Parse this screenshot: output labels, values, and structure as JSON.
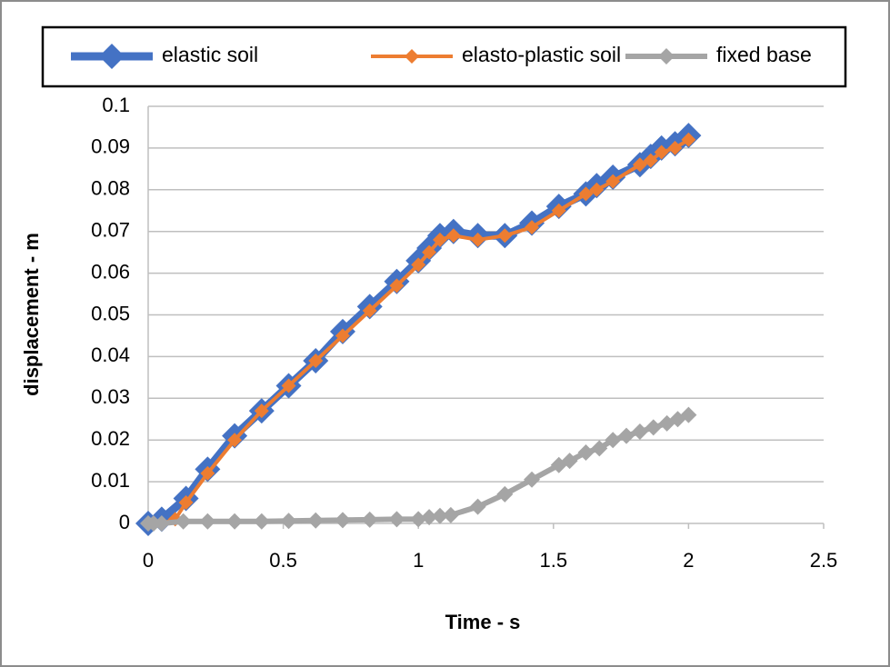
{
  "chart_data": {
    "type": "line",
    "x_label": "Time - s",
    "y_label": "displacement - m",
    "xlim": [
      0,
      2.5
    ],
    "xticks": [
      0,
      0.5,
      1,
      1.5,
      2,
      2.5
    ],
    "ylim": [
      0,
      0.1
    ],
    "yticks": [
      0,
      0.01,
      0.02,
      0.03,
      0.04,
      0.05,
      0.06,
      0.07,
      0.08,
      0.09,
      0.1
    ],
    "grid": true,
    "legend": "top",
    "series": [
      {
        "name": "elastic soil",
        "color": "#4472c4",
        "x": [
          0,
          0.05,
          0.14,
          0.22,
          0.32,
          0.42,
          0.52,
          0.62,
          0.72,
          0.82,
          0.92,
          1.0,
          1.04,
          1.08,
          1.13,
          1.22,
          1.32,
          1.42,
          1.52,
          1.62,
          1.66,
          1.72,
          1.82,
          1.86,
          1.9,
          1.95,
          2.0
        ],
        "values": [
          0,
          0.001,
          0.006,
          0.013,
          0.021,
          0.027,
          0.033,
          0.039,
          0.046,
          0.052,
          0.058,
          0.063,
          0.066,
          0.069,
          0.07,
          0.069,
          0.069,
          0.072,
          0.076,
          0.079,
          0.081,
          0.083,
          0.086,
          0.088,
          0.09,
          0.091,
          0.093
        ]
      },
      {
        "name": "elasto-plastic soil",
        "color": "#ed7d31",
        "x": [
          0,
          0.05,
          0.1,
          0.14,
          0.22,
          0.32,
          0.42,
          0.52,
          0.62,
          0.72,
          0.82,
          0.92,
          1.0,
          1.04,
          1.08,
          1.13,
          1.22,
          1.32,
          1.42,
          1.52,
          1.62,
          1.66,
          1.72,
          1.82,
          1.86,
          1.9,
          1.95,
          2.0
        ],
        "values": [
          0,
          0,
          0.001,
          0.005,
          0.012,
          0.02,
          0.027,
          0.033,
          0.039,
          0.045,
          0.051,
          0.057,
          0.062,
          0.065,
          0.068,
          0.069,
          0.068,
          0.069,
          0.071,
          0.075,
          0.079,
          0.08,
          0.082,
          0.086,
          0.087,
          0.089,
          0.09,
          0.092
        ]
      },
      {
        "name": "fixed base",
        "color": "#a5a5a5",
        "x": [
          0,
          0.02,
          0.05,
          0.13,
          0.22,
          0.32,
          0.42,
          0.52,
          0.62,
          0.72,
          0.82,
          0.92,
          1.0,
          1.04,
          1.08,
          1.12,
          1.22,
          1.32,
          1.42,
          1.52,
          1.56,
          1.62,
          1.67,
          1.72,
          1.77,
          1.82,
          1.87,
          1.92,
          1.96,
          2.0
        ],
        "values": [
          0,
          0,
          0,
          0.0005,
          0.0005,
          0.0005,
          0.0005,
          0.0006,
          0.0007,
          0.0008,
          0.0009,
          0.001,
          0.001,
          0.0015,
          0.0018,
          0.002,
          0.004,
          0.007,
          0.0105,
          0.014,
          0.015,
          0.017,
          0.018,
          0.02,
          0.021,
          0.022,
          0.023,
          0.024,
          0.025,
          0.026
        ]
      }
    ]
  }
}
